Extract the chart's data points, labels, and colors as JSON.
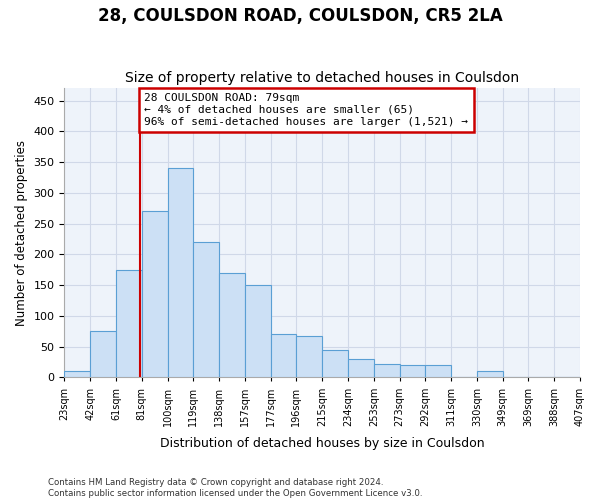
{
  "title": "28, COULSDON ROAD, COULSDON, CR5 2LA",
  "subtitle": "Size of property relative to detached houses in Coulsdon",
  "xlabel": "Distribution of detached houses by size in Coulsdon",
  "ylabel": "Number of detached properties",
  "bar_values": [
    10,
    75,
    175,
    270,
    340,
    220,
    170,
    150,
    70,
    68,
    45,
    30,
    22,
    20,
    20,
    0,
    10,
    0,
    0,
    0
  ],
  "bin_labels": [
    "23sqm",
    "42sqm",
    "61sqm",
    "81sqm",
    "100sqm",
    "119sqm",
    "138sqm",
    "157sqm",
    "177sqm",
    "196sqm",
    "215sqm",
    "234sqm",
    "253sqm",
    "273sqm",
    "292sqm",
    "311sqm",
    "330sqm",
    "349sqm",
    "369sqm",
    "388sqm",
    "407sqm"
  ],
  "bar_color": "#cce0f5",
  "bar_edge_color": "#5a9fd4",
  "grid_color": "#d0d8e8",
  "bg_color": "#eef3fa",
  "property_line_x": 2.95,
  "annotation_line1": "28 COULSDON ROAD: 79sqm",
  "annotation_line2": "← 4% of detached houses are smaller (65)",
  "annotation_line3": "96% of semi-detached houses are larger (1,521) →",
  "annotation_box_color": "#ffffff",
  "annotation_box_edge": "#cc0000",
  "vline_color": "#cc0000",
  "ylim": [
    0,
    470
  ],
  "yticks": [
    0,
    50,
    100,
    150,
    200,
    250,
    300,
    350,
    400,
    450
  ],
  "footnote1": "Contains HM Land Registry data © Crown copyright and database right 2024.",
  "footnote2": "Contains public sector information licensed under the Open Government Licence v3.0.",
  "title_fontsize": 12,
  "subtitle_fontsize": 10
}
